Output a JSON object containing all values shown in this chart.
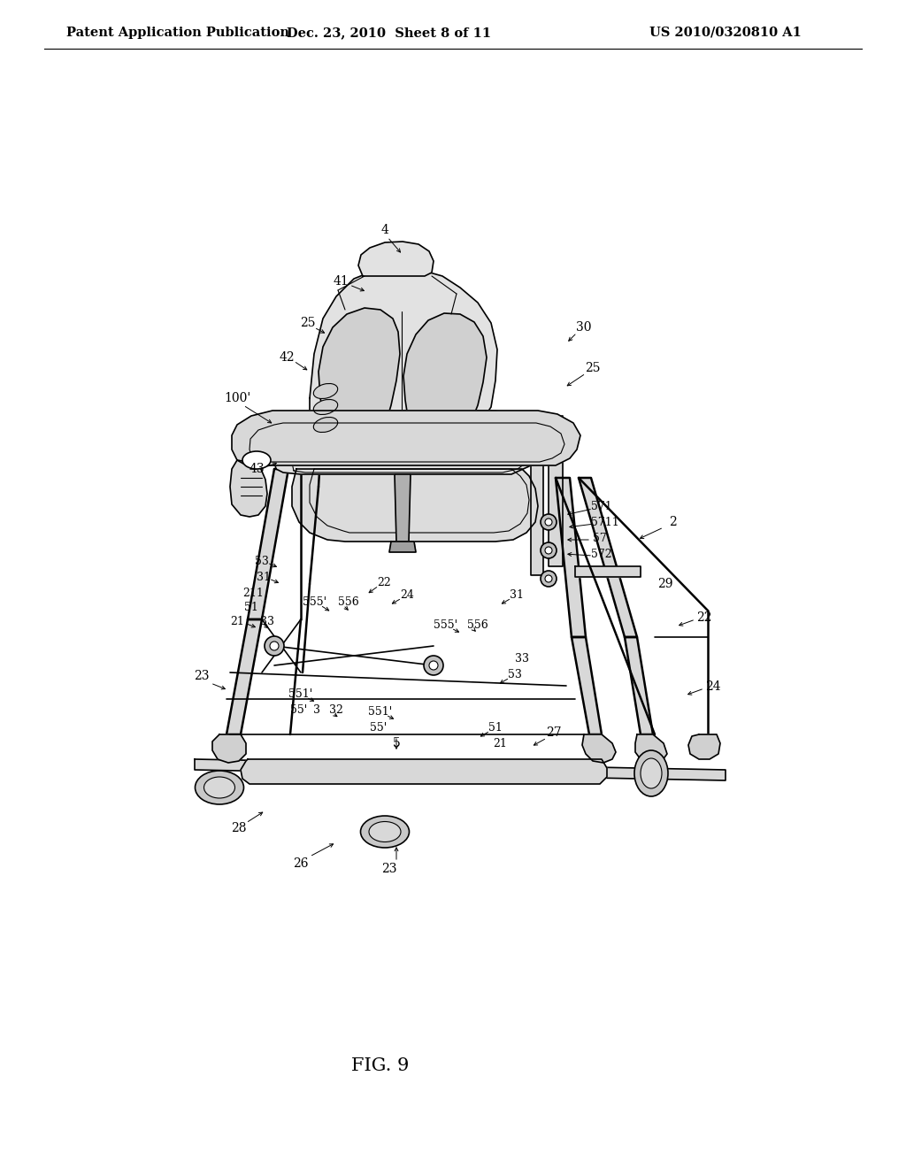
{
  "background_color": "#f5f5f0",
  "header_left": "Patent Application Publication",
  "header_center": "Dec. 23, 2010  Sheet 8 of 11",
  "header_right": "US 2010/0320810 A1",
  "figure_label": "FIG. 9",
  "header_font_size": 10.5,
  "fig_label_font_size": 15,
  "page_bg": "#f5f5f0"
}
